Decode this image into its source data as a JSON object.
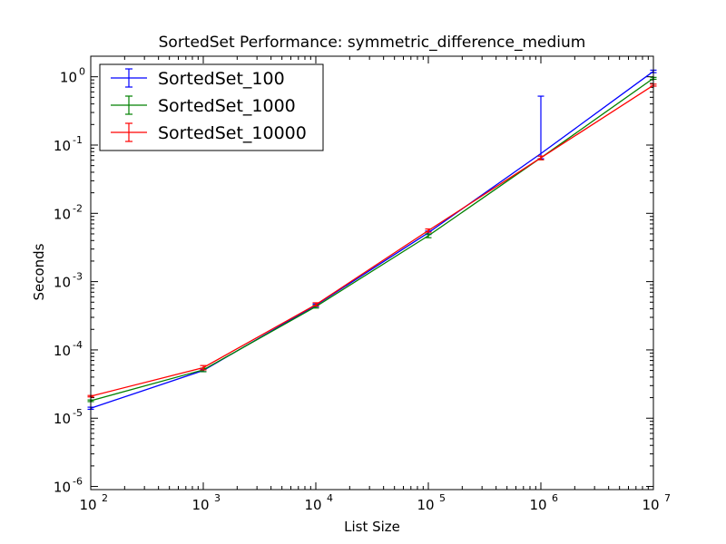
{
  "chart_data": {
    "type": "line",
    "title": "SortedSet Performance: symmetric_difference_medium",
    "xlabel": "List Size",
    "ylabel": "Seconds",
    "x_scale": "log",
    "y_scale": "log",
    "xlim": [
      100,
      10000000
    ],
    "ylim": [
      9e-07,
      2
    ],
    "x_ticks": [
      {
        "value": 100,
        "base": "10",
        "exp": "2"
      },
      {
        "value": 1000,
        "base": "10",
        "exp": "3"
      },
      {
        "value": 10000,
        "base": "10",
        "exp": "4"
      },
      {
        "value": 100000,
        "base": "10",
        "exp": "5"
      },
      {
        "value": 1000000,
        "base": "10",
        "exp": "6"
      },
      {
        "value": 10000000,
        "base": "10",
        "exp": "7"
      }
    ],
    "y_ticks": [
      {
        "value": 1e-06,
        "base": "10",
        "exp": "-6"
      },
      {
        "value": 1e-05,
        "base": "10",
        "exp": "-5"
      },
      {
        "value": 0.0001,
        "base": "10",
        "exp": "-4"
      },
      {
        "value": 0.001,
        "base": "10",
        "exp": "-3"
      },
      {
        "value": 0.01,
        "base": "10",
        "exp": "-2"
      },
      {
        "value": 0.1,
        "base": "10",
        "exp": "-1"
      },
      {
        "value": 1,
        "base": "10",
        "exp": "0"
      }
    ],
    "grid": false,
    "legend_position": "top-left",
    "x": [
      100,
      1000,
      10000,
      100000,
      1000000,
      10000000
    ],
    "series": [
      {
        "name": "SortedSet_100",
        "color": "#0000ff",
        "values": [
          1.4e-05,
          5e-05,
          0.00045,
          0.0052,
          0.075,
          1.2
        ],
        "err_low": [
          1.35e-05,
          4.8e-05,
          0.00043,
          0.0049,
          0.063,
          1.15
        ],
        "err_high": [
          1.45e-05,
          5.2e-05,
          0.00047,
          0.0055,
          0.52,
          1.25
        ]
      },
      {
        "name": "SortedSet_1000",
        "color": "#008000",
        "values": [
          1.8e-05,
          5.1e-05,
          0.00043,
          0.0047,
          0.065,
          0.95
        ],
        "err_low": [
          1.75e-05,
          4.8e-05,
          0.00041,
          0.0044,
          0.061,
          0.92
        ],
        "err_high": [
          1.85e-05,
          5.4e-05,
          0.00045,
          0.005,
          0.069,
          0.98
        ]
      },
      {
        "name": "SortedSet_10000",
        "color": "#ff0000",
        "values": [
          2.1e-05,
          5.5e-05,
          0.00046,
          0.0056,
          0.065,
          0.75
        ],
        "err_low": [
          2.05e-05,
          5.1e-05,
          0.00044,
          0.0053,
          0.061,
          0.73
        ],
        "err_high": [
          2.15e-05,
          5.9e-05,
          0.00049,
          0.0059,
          0.069,
          0.78
        ]
      }
    ]
  }
}
